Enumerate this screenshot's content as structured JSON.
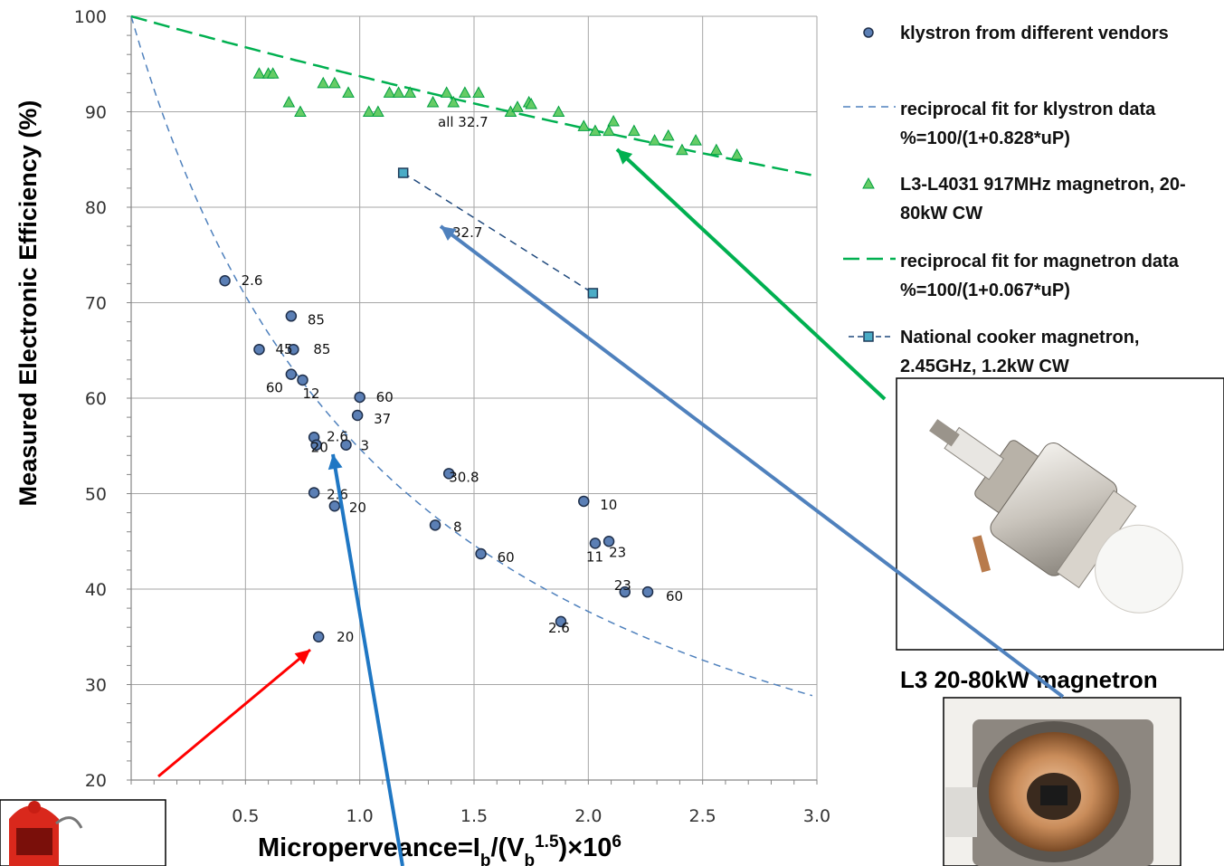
{
  "chart_data": {
    "type": "scatter",
    "xlabel_parts": [
      "Microperveance=I",
      "b",
      "/(V",
      "b",
      "1.5",
      ")×10",
      "6"
    ],
    "ylabel": "Measured Electronic Efficiency (%)",
    "xlim": [
      0,
      3.0
    ],
    "ylim": [
      20,
      100
    ],
    "x_ticks": [
      "0.5",
      "1.0",
      "1.5",
      "2.0",
      "2.5",
      "3.0"
    ],
    "y_ticks": [
      "20",
      "30",
      "40",
      "50",
      "60",
      "70",
      "80",
      "90",
      "100"
    ],
    "grid": true,
    "legend_position": "right",
    "series": [
      {
        "name": "klystron from different vendors",
        "kind": "points",
        "color": "#4F81BD",
        "points": [
          {
            "x": 0.41,
            "y": 72.3,
            "label": "2.6"
          },
          {
            "x": 0.7,
            "y": 68.6,
            "label": "85"
          },
          {
            "x": 0.56,
            "y": 65.1,
            "label": "45"
          },
          {
            "x": 0.71,
            "y": 65.1,
            "label": "85"
          },
          {
            "x": 0.7,
            "y": 62.5,
            "label": "60"
          },
          {
            "x": 0.75,
            "y": 61.9,
            "label": "12"
          },
          {
            "x": 1.0,
            "y": 60.1,
            "label": "60"
          },
          {
            "x": 0.99,
            "y": 58.2,
            "label": "37"
          },
          {
            "x": 0.8,
            "y": 55.9,
            "label": "2.6"
          },
          {
            "x": 0.81,
            "y": 55.1,
            "label": "20"
          },
          {
            "x": 0.94,
            "y": 55.1,
            "label": "3"
          },
          {
            "x": 1.39,
            "y": 52.1,
            "label": "30.8"
          },
          {
            "x": 0.8,
            "y": 50.1,
            "label": "2.6"
          },
          {
            "x": 0.89,
            "y": 48.7,
            "label": "20"
          },
          {
            "x": 1.98,
            "y": 49.2,
            "label": "10"
          },
          {
            "x": 1.33,
            "y": 46.7,
            "label": "8"
          },
          {
            "x": 2.03,
            "y": 44.8,
            "label": "11"
          },
          {
            "x": 2.09,
            "y": 45.0,
            "label": "23"
          },
          {
            "x": 1.53,
            "y": 43.7,
            "label": "60"
          },
          {
            "x": 2.16,
            "y": 39.7,
            "label": "23"
          },
          {
            "x": 2.26,
            "y": 39.7,
            "label": "60"
          },
          {
            "x": 1.88,
            "y": 36.6,
            "label": "2.6"
          },
          {
            "x": 0.82,
            "y": 35.0,
            "label": "20"
          }
        ]
      },
      {
        "name": "reciprocal fit for klystron data",
        "name_line2": "%=100/(1+0.828*uP)",
        "kind": "fit",
        "color": "#4F81BD",
        "coefficient": 0.828
      },
      {
        "name": "L3-L4031 917MHz magnetron, 20-",
        "name_line2": "80kW CW",
        "kind": "points",
        "color": "#00B050",
        "point_label": "all 32.7",
        "points": [
          {
            "x": 0.56,
            "y": 94.0
          },
          {
            "x": 0.6,
            "y": 94.0
          },
          {
            "x": 0.62,
            "y": 94.0
          },
          {
            "x": 0.69,
            "y": 91.0
          },
          {
            "x": 0.74,
            "y": 90.0
          },
          {
            "x": 0.84,
            "y": 93.0
          },
          {
            "x": 0.89,
            "y": 93.0
          },
          {
            "x": 0.95,
            "y": 92.0
          },
          {
            "x": 1.04,
            "y": 90.0
          },
          {
            "x": 1.08,
            "y": 90.0
          },
          {
            "x": 1.13,
            "y": 92.0
          },
          {
            "x": 1.17,
            "y": 92.0
          },
          {
            "x": 1.22,
            "y": 92.0
          },
          {
            "x": 1.32,
            "y": 91.0
          },
          {
            "x": 1.38,
            "y": 92.0
          },
          {
            "x": 1.41,
            "y": 91.0
          },
          {
            "x": 1.46,
            "y": 92.0
          },
          {
            "x": 1.52,
            "y": 92.0
          },
          {
            "x": 1.66,
            "y": 90.0
          },
          {
            "x": 1.69,
            "y": 90.5
          },
          {
            "x": 1.74,
            "y": 91.0
          },
          {
            "x": 1.75,
            "y": 90.8
          },
          {
            "x": 1.87,
            "y": 90.0
          },
          {
            "x": 1.98,
            "y": 88.5
          },
          {
            "x": 2.03,
            "y": 88.0
          },
          {
            "x": 2.09,
            "y": 88.0
          },
          {
            "x": 2.11,
            "y": 89.0
          },
          {
            "x": 2.2,
            "y": 88.0
          },
          {
            "x": 2.29,
            "y": 87.0
          },
          {
            "x": 2.35,
            "y": 87.5
          },
          {
            "x": 2.41,
            "y": 86.0
          },
          {
            "x": 2.47,
            "y": 87.0
          },
          {
            "x": 2.56,
            "y": 86.0
          },
          {
            "x": 2.65,
            "y": 85.5
          }
        ]
      },
      {
        "name": "reciprocal fit for magnetron data",
        "name_line2": "%=100/(1+0.067*uP)",
        "kind": "fit",
        "color": "#00B050",
        "coefficient": 0.067
      },
      {
        "name": "National cooker magnetron,",
        "name_line2": "2.45GHz, 1.2kW CW",
        "kind": "line-points",
        "color": "#4BACC6",
        "line_color": "#1F497D",
        "point_label": "32.7",
        "points": [
          {
            "x": 1.19,
            "y": 83.6
          },
          {
            "x": 2.02,
            "y": 71.0
          }
        ]
      }
    ],
    "photo_captions": {
      "l3": "L3 20-80kW magnetron"
    }
  }
}
